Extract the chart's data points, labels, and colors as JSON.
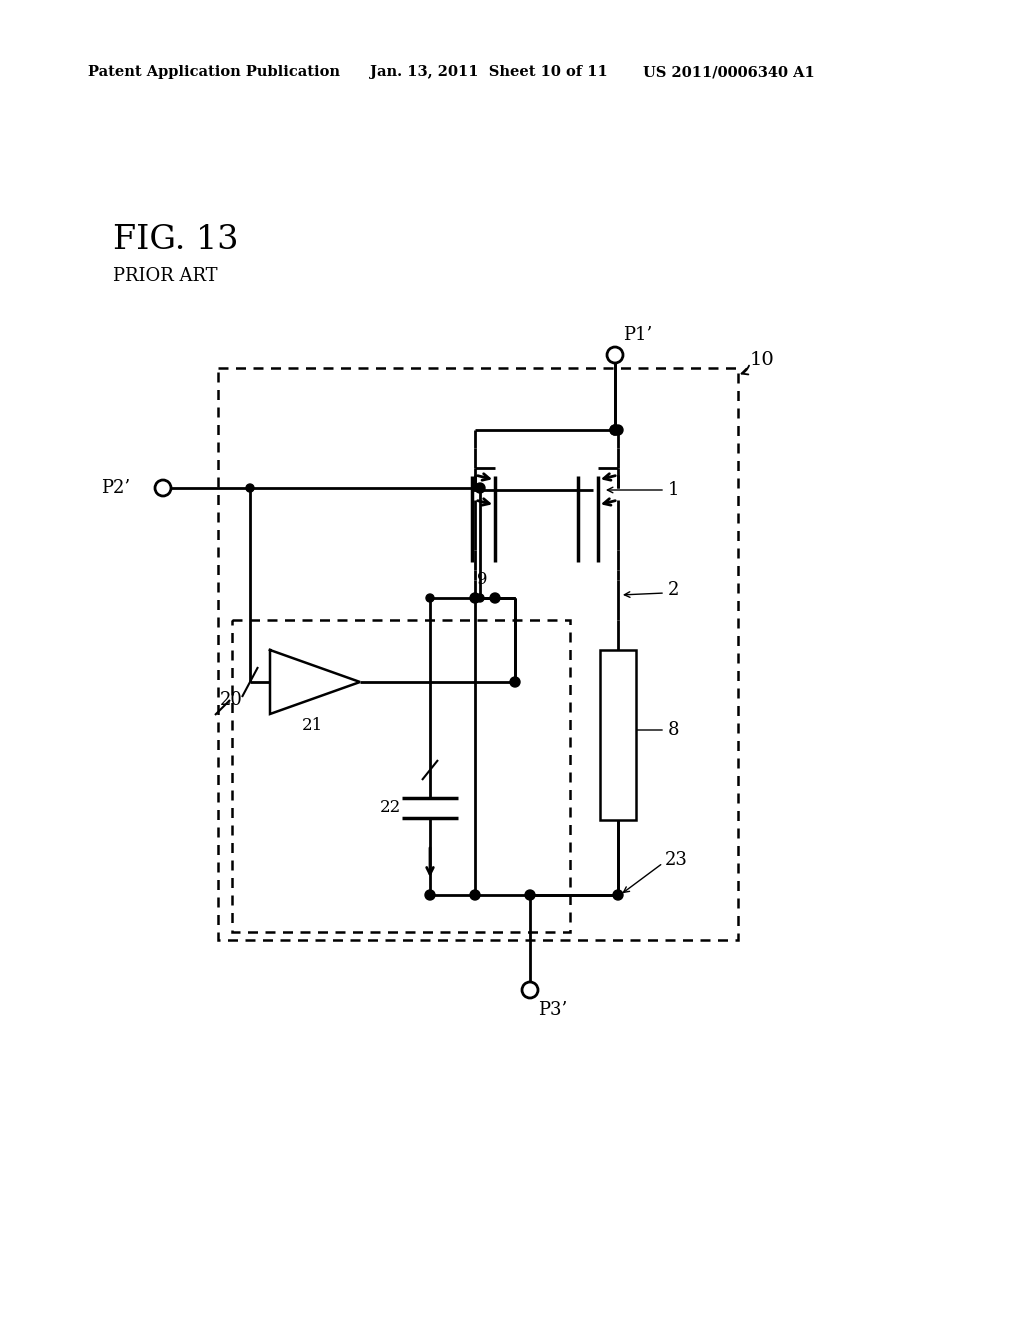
{
  "header_left": "Patent Application Publication",
  "header_mid": "Jan. 13, 2011  Sheet 10 of 11",
  "header_right": "US 2011/0006340 A1",
  "fig_label": "FIG. 13",
  "prior_art": "PRIOR ART",
  "background": "#ffffff",
  "lc": "black",
  "labels": {
    "P1": "P1’",
    "P2": "P2’",
    "P3": "P3’",
    "n10": "10",
    "n1": "1",
    "n2": "2",
    "n8": "8",
    "n9": "9",
    "n20": "20",
    "n21": "21",
    "n22": "22",
    "n23": "23"
  }
}
